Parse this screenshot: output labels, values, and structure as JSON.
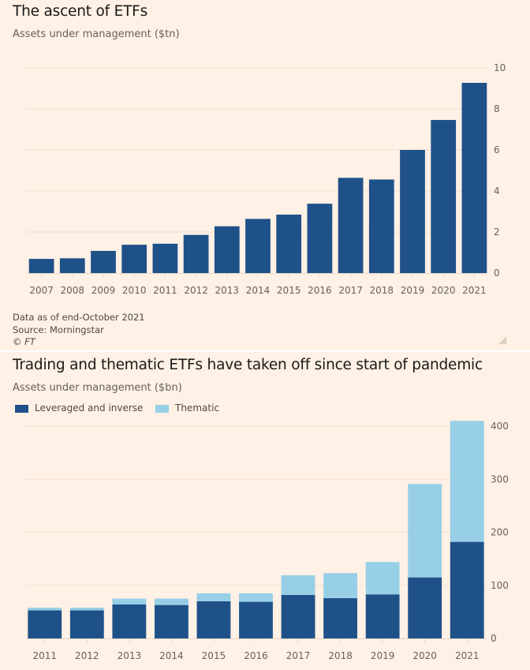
{
  "colors": {
    "background": "#fff1e5",
    "gridline": "#f2dfce",
    "axis": "#e6d5c6",
    "bar_primary": "#1f5189",
    "bar_secondary": "#96cfe6"
  },
  "panel1": {
    "title": "The ascent of ETFs",
    "subtitle": "Assets under management ($tn)",
    "footnotes": {
      "note": "Data as of end-October 2021",
      "source": "Source: Morningstar",
      "copyright": "© FT"
    }
  },
  "panel2": {
    "title": "Trading and thematic ETFs have taken off since start of pandemic",
    "subtitle": "Assets under management ($bn)",
    "legend": [
      {
        "label": "Leveraged and inverse",
        "color": "#1f5189"
      },
      {
        "label": "Thematic",
        "color": "#96cfe6"
      }
    ]
  },
  "chart_data": [
    {
      "type": "bar",
      "title": "The ascent of ETFs",
      "subtitle": "Assets under management ($tn)",
      "xlabel": "",
      "ylabel": "Assets under management ($tn)",
      "categories": [
        "2007",
        "2008",
        "2009",
        "2010",
        "2011",
        "2012",
        "2013",
        "2014",
        "2015",
        "2016",
        "2017",
        "2018",
        "2019",
        "2020",
        "2021"
      ],
      "values": [
        0.69,
        0.72,
        1.08,
        1.38,
        1.43,
        1.86,
        2.28,
        2.64,
        2.85,
        3.38,
        4.64,
        4.56,
        6.0,
        7.46,
        9.27
      ],
      "ylim": [
        0,
        10
      ],
      "yticks": [
        0,
        2,
        4,
        6,
        8,
        10
      ],
      "y_axis_side": "right",
      "grid": true,
      "color": "#1f5189"
    },
    {
      "type": "bar",
      "stacked": true,
      "title": "Trading and thematic ETFs have taken off since start of pandemic",
      "subtitle": "Assets under management ($bn)",
      "xlabel": "",
      "ylabel": "Assets under management ($bn)",
      "categories": [
        "2011",
        "2012",
        "2013",
        "2014",
        "2015",
        "2016",
        "2017",
        "2018",
        "2019",
        "2020",
        "2021"
      ],
      "series": [
        {
          "name": "Leveraged and inverse",
          "color": "#1f5189",
          "values": [
            53,
            53,
            64,
            63,
            70,
            69,
            82,
            76,
            83,
            115,
            182
          ]
        },
        {
          "name": "Thematic",
          "color": "#96cfe6",
          "values": [
            5,
            5,
            11,
            12,
            15,
            16,
            37,
            47,
            61,
            176,
            228
          ]
        }
      ],
      "ylim": [
        0,
        400
      ],
      "yticks": [
        0,
        100,
        200,
        300,
        400
      ],
      "y_axis_side": "right",
      "grid": true,
      "legend": "top-left"
    }
  ]
}
